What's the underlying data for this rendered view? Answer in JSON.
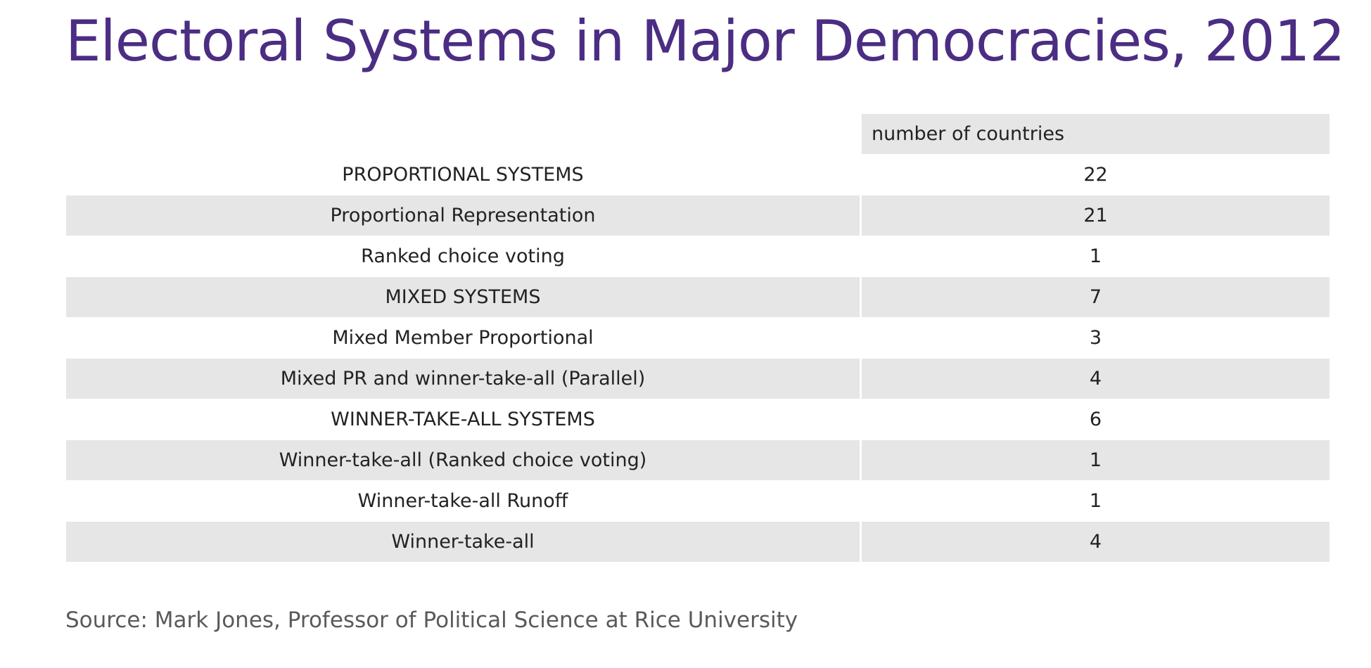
{
  "title": "Electoral Systems in Major Democracies, 2012",
  "colors": {
    "title": "#4b2d83",
    "row_shade": "#e6e6e6",
    "text": "#222222",
    "source_text": "#5a5a5a"
  },
  "chart_data": {
    "type": "table",
    "title": "Electoral Systems in Major Democracies, 2012",
    "columns": [
      "",
      "number of countries"
    ],
    "rows": [
      {
        "label": "PROPORTIONAL SYSTEMS",
        "value": "22"
      },
      {
        "label": "Proportional Representation",
        "value": "21"
      },
      {
        "label": "Ranked choice voting",
        "value": "1"
      },
      {
        "label": "MIXED SYSTEMS",
        "value": "7"
      },
      {
        "label": "Mixed Member Proportional",
        "value": "3"
      },
      {
        "label": "Mixed PR and winner-take-all (Parallel)",
        "value": "4"
      },
      {
        "label": "WINNER-TAKE-ALL SYSTEMS",
        "value": "6"
      },
      {
        "label": "Winner-take-all (Ranked choice voting)",
        "value": "1"
      },
      {
        "label": "Winner-take-all Runoff",
        "value": "1"
      },
      {
        "label": "Winner-take-all",
        "value": "4"
      }
    ]
  },
  "source": "Source: Mark Jones, Professor of Political Science at Rice University"
}
